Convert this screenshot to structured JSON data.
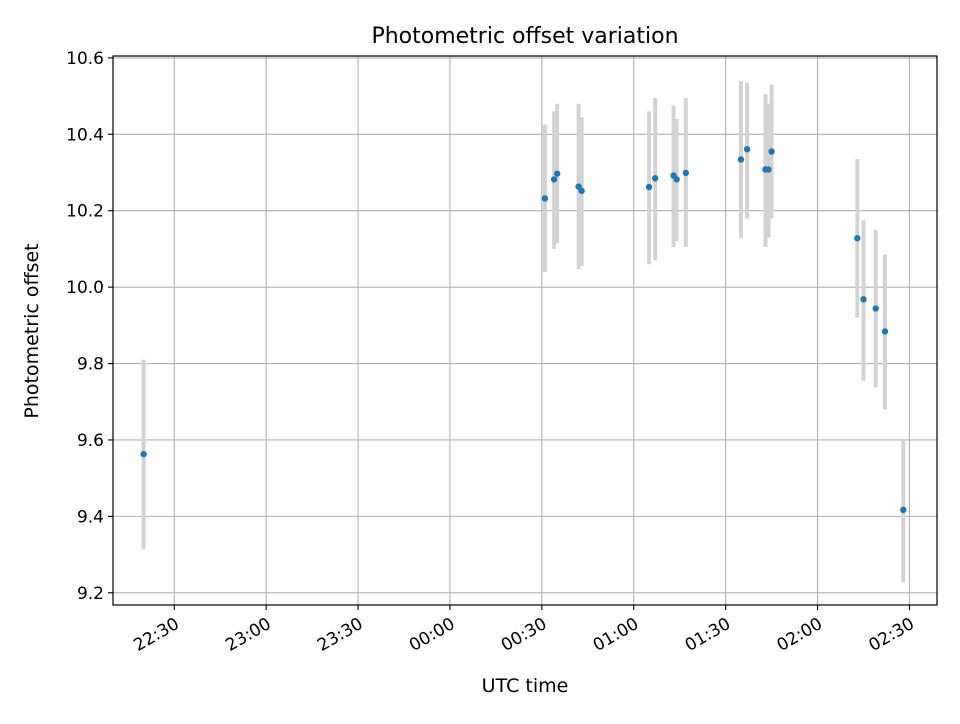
{
  "chart_data": {
    "type": "scatter",
    "title": "Photometric offset variation",
    "xlabel": "UTC time",
    "ylabel": "Photometric offset",
    "grid": true,
    "xlim": [
      "22:10",
      "02:39"
    ],
    "ylim": [
      9.168,
      10.605
    ],
    "x_ticks": [
      "22:30",
      "23:00",
      "23:30",
      "00:00",
      "00:30",
      "01:00",
      "01:30",
      "02:00",
      "02:30"
    ],
    "y_ticks": [
      "9.2",
      "9.4",
      "9.6",
      "9.8",
      "10.0",
      "10.2",
      "10.4",
      "10.6"
    ],
    "colors": {
      "points": "#1f77b4",
      "errorbars": "#d3d3d3",
      "grid": "#b0b0b0"
    },
    "series": [
      {
        "points": [
          {
            "x": "22:20",
            "y": 9.563,
            "ylo": 9.315,
            "yhi": 9.81
          },
          {
            "x": "00:31",
            "y": 10.232,
            "ylo": 10.04,
            "yhi": 10.425
          },
          {
            "x": "00:34",
            "y": 10.282,
            "ylo": 10.1,
            "yhi": 10.46
          },
          {
            "x": "00:35",
            "y": 10.297,
            "ylo": 10.115,
            "yhi": 10.48
          },
          {
            "x": "00:42",
            "y": 10.263,
            "ylo": 10.047,
            "yhi": 10.48
          },
          {
            "x": "00:43",
            "y": 10.252,
            "ylo": 10.055,
            "yhi": 10.445
          },
          {
            "x": "01:05",
            "y": 10.262,
            "ylo": 10.06,
            "yhi": 10.46
          },
          {
            "x": "01:07",
            "y": 10.285,
            "ylo": 10.07,
            "yhi": 10.495
          },
          {
            "x": "01:13",
            "y": 10.292,
            "ylo": 10.105,
            "yhi": 10.475
          },
          {
            "x": "01:14",
            "y": 10.282,
            "ylo": 10.12,
            "yhi": 10.44
          },
          {
            "x": "01:17",
            "y": 10.299,
            "ylo": 10.105,
            "yhi": 10.495
          },
          {
            "x": "01:35",
            "y": 10.334,
            "ylo": 10.128,
            "yhi": 10.54
          },
          {
            "x": "01:37",
            "y": 10.361,
            "ylo": 10.18,
            "yhi": 10.535
          },
          {
            "x": "01:43",
            "y": 10.308,
            "ylo": 10.105,
            "yhi": 10.505
          },
          {
            "x": "01:44",
            "y": 10.308,
            "ylo": 10.13,
            "yhi": 10.48
          },
          {
            "x": "01:45",
            "y": 10.355,
            "ylo": 10.18,
            "yhi": 10.53
          },
          {
            "x": "02:13",
            "y": 10.128,
            "ylo": 9.92,
            "yhi": 10.335
          },
          {
            "x": "02:15",
            "y": 9.968,
            "ylo": 9.755,
            "yhi": 10.175
          },
          {
            "x": "02:19",
            "y": 9.944,
            "ylo": 9.738,
            "yhi": 10.15
          },
          {
            "x": "02:22",
            "y": 9.884,
            "ylo": 9.68,
            "yhi": 10.085
          },
          {
            "x": "02:28",
            "y": 9.417,
            "ylo": 9.228,
            "yhi": 9.6
          }
        ]
      }
    ]
  }
}
